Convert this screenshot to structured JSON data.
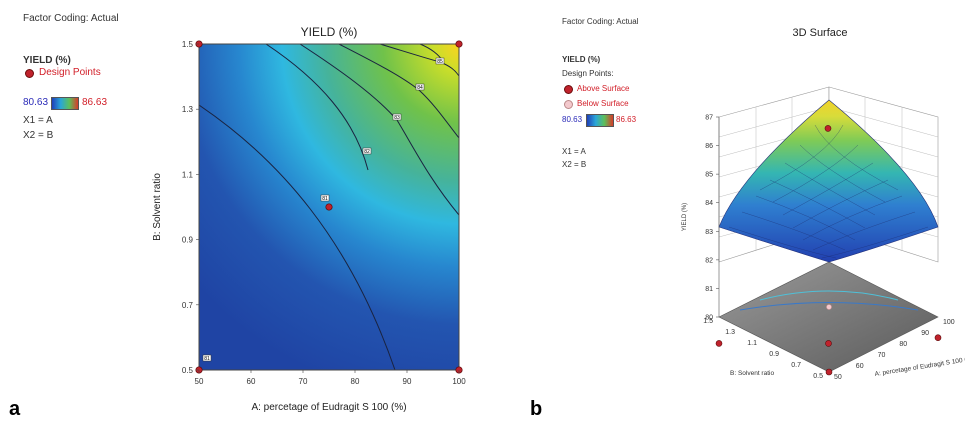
{
  "panel_a": {
    "letter": "a",
    "factor_coding": "Factor Coding: Actual",
    "response": "YIELD (%)",
    "design_points_label": "Design Points",
    "range_low": "80.63",
    "range_high": "86.63",
    "x1": "X1 = A",
    "x2": "X2 = B"
  },
  "panel_b": {
    "letter": "b",
    "factor_coding": "Factor Coding: Actual",
    "response": "YIELD (%)",
    "design_points_label": "Design Points:",
    "above_label": "Above Surface",
    "below_label": "Below Surface",
    "range_low": "80.63",
    "range_high": "86.63",
    "x1": "X1 = A",
    "x2": "X2 = B"
  },
  "chart_data": [
    {
      "type": "heatmap",
      "subtype": "contour",
      "title": "YIELD (%)",
      "xlabel": "A: percetage of Eudragit S 100 (%)",
      "ylabel": "B: Solvent ratio",
      "xlim": [
        50,
        100
      ],
      "ylim": [
        0.5,
        1.5
      ],
      "x_ticks": [
        "50",
        "60",
        "70",
        "80",
        "90",
        "100"
      ],
      "y_ticks": [
        "0.5",
        "0.7",
        "0.9",
        "1.1",
        "1.3",
        "1.5"
      ],
      "color_range": [
        80.63,
        86.63
      ],
      "contour_labels": [
        "81",
        "81",
        "82",
        "83",
        "84",
        "85"
      ],
      "design_points": [
        {
          "x": 50,
          "y": 0.5
        },
        {
          "x": 50,
          "y": 1.5
        },
        {
          "x": 100,
          "y": 0.5
        },
        {
          "x": 100,
          "y": 1.5
        },
        {
          "x": 75,
          "y": 1.0
        }
      ],
      "grid": false
    },
    {
      "type": "surface",
      "title": "3D Surface",
      "zlabel": "YIELD (%)",
      "xlabel": "A: percetage of Eudragit S 100 (%)",
      "ylabel": "B: Solvent ratio",
      "xlim": [
        50,
        100
      ],
      "ylim": [
        0.5,
        1.5
      ],
      "zlim": [
        80,
        87
      ],
      "z_ticks": [
        "80",
        "81",
        "82",
        "83",
        "84",
        "85",
        "86",
        "87"
      ],
      "x_ticks": [
        "50",
        "60",
        "70",
        "80",
        "90",
        "100"
      ],
      "y_ticks": [
        "0.5",
        "0.7",
        "0.9",
        "1.1",
        "1.3",
        "1.5"
      ],
      "color_range": [
        80.63,
        86.63
      ],
      "design_points": [
        {
          "x": 100,
          "y": 1.5,
          "z": 86.6
        },
        {
          "x": 50,
          "y": 0.5,
          "z": 81.5
        },
        {
          "x": 75,
          "y": 1.0,
          "z": 81.0
        },
        {
          "x": 100,
          "y": 0.5,
          "z": 81.2
        },
        {
          "x": 50,
          "y": 1.5,
          "z": 81.0
        }
      ]
    }
  ]
}
